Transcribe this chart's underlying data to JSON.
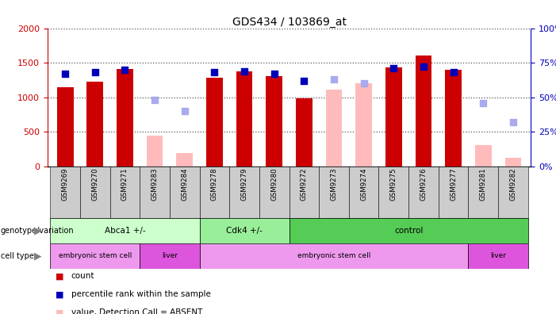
{
  "title": "GDS434 / 103869_at",
  "samples": [
    "GSM9269",
    "GSM9270",
    "GSM9271",
    "GSM9283",
    "GSM9284",
    "GSM9278",
    "GSM9279",
    "GSM9280",
    "GSM9272",
    "GSM9273",
    "GSM9274",
    "GSM9275",
    "GSM9276",
    "GSM9277",
    "GSM9281",
    "GSM9282"
  ],
  "counts": [
    1150,
    1230,
    1410,
    null,
    null,
    1280,
    1380,
    1310,
    990,
    null,
    null,
    1430,
    1600,
    1400,
    null,
    null
  ],
  "absent_values": [
    null,
    null,
    null,
    450,
    190,
    null,
    null,
    null,
    null,
    1110,
    1200,
    null,
    null,
    null,
    310,
    130
  ],
  "ranks": [
    67,
    68,
    70,
    null,
    null,
    68,
    69,
    67,
    62,
    null,
    null,
    71,
    72,
    68,
    null,
    null
  ],
  "absent_ranks": [
    null,
    null,
    null,
    48,
    40,
    null,
    null,
    null,
    null,
    63,
    60,
    null,
    null,
    null,
    46,
    32
  ],
  "ylim_left": [
    0,
    2000
  ],
  "ylim_right": [
    0,
    100
  ],
  "yticks_left": [
    0,
    500,
    1000,
    1500,
    2000
  ],
  "yticks_right": [
    0,
    25,
    50,
    75,
    100
  ],
  "genotype_groups": [
    {
      "label": "Abca1 +/-",
      "start": 0,
      "end": 4,
      "color": "#ccffcc"
    },
    {
      "label": "Cdk4 +/-",
      "start": 5,
      "end": 7,
      "color": "#99ee99"
    },
    {
      "label": "control",
      "start": 8,
      "end": 15,
      "color": "#55cc55"
    }
  ],
  "celltype_groups": [
    {
      "label": "embryonic stem cell",
      "start": 0,
      "end": 2,
      "color": "#ee99ee"
    },
    {
      "label": "liver",
      "start": 3,
      "end": 4,
      "color": "#dd55dd"
    },
    {
      "label": "embryonic stem cell",
      "start": 5,
      "end": 13,
      "color": "#ee99ee"
    },
    {
      "label": "liver",
      "start": 14,
      "end": 15,
      "color": "#dd55dd"
    }
  ],
  "bar_color_present": "#cc0000",
  "bar_color_absent": "#ffbbbb",
  "rank_color_present": "#0000bb",
  "rank_color_absent": "#aaaaee",
  "bar_width": 0.55,
  "rank_marker_size": 40,
  "dot_grid_color": "#555555",
  "bg_color": "#ffffff",
  "left_ylabel_color": "#cc0000",
  "right_ylabel_color": "#0000bb",
  "xticklabel_bg": "#cccccc"
}
